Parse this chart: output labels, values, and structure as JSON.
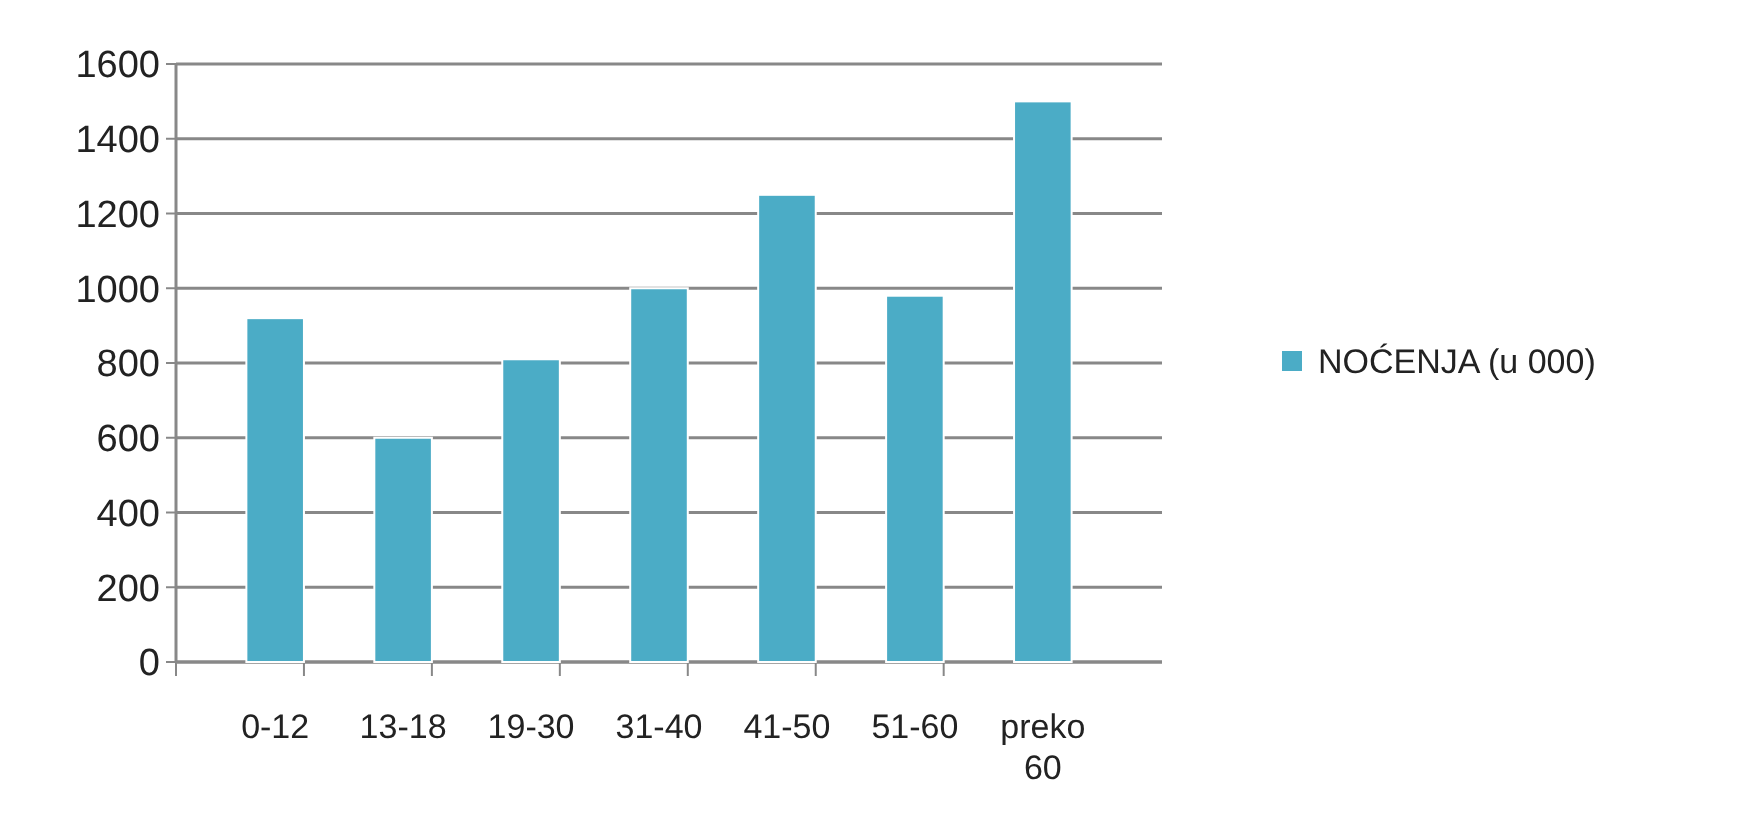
{
  "chart_data": {
    "type": "bar",
    "categories": [
      "0-12",
      "13-18",
      "19-30",
      "31-40",
      "41-50",
      "51-60",
      "preko 60"
    ],
    "series": [
      {
        "name": "NOĆENJA (u 000)",
        "color": "#4bacc6",
        "values": [
          920,
          600,
          810,
          1000,
          1250,
          980,
          1500
        ]
      }
    ],
    "ylim": [
      0,
      1600
    ],
    "yticks": [
      0,
      200,
      400,
      600,
      800,
      1000,
      1200,
      1400,
      1600
    ],
    "grid": "y",
    "legend": "right"
  }
}
